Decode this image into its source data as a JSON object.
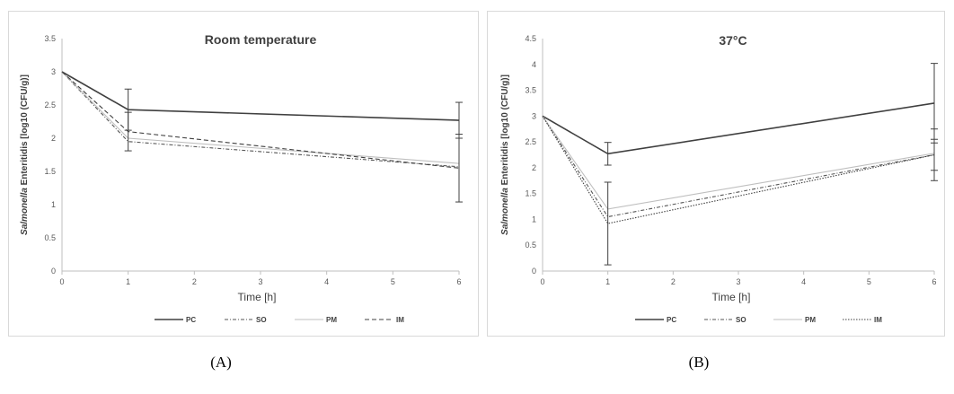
{
  "captions": [
    "(A)",
    "(B)"
  ],
  "chart_data": [
    {
      "type": "line",
      "title": "Room temperature",
      "xlabel": "Time [h]",
      "ylabel_italic": "Salmonella",
      "ylabel_rest": " Enteritidis  [log10 (CFU/g)]",
      "x": [
        0,
        1,
        6
      ],
      "xticks": [
        "0",
        "1",
        "2",
        "3",
        "4",
        "5",
        "6"
      ],
      "xlim": [
        0,
        6
      ],
      "ylim": [
        0,
        3.5
      ],
      "yticks": [
        "0",
        "0.5",
        "1",
        "1.5",
        "2",
        "2.5",
        "3",
        "3.5"
      ],
      "legend_position": "bottom",
      "series": [
        {
          "name": "PC",
          "values": [
            3.0,
            2.43,
            2.27
          ],
          "err": [
            0,
            0.31,
            0.27
          ],
          "dash": "",
          "color": "#404040",
          "width": 1.6
        },
        {
          "name": "SO",
          "values": [
            3.0,
            1.95,
            1.57
          ],
          "err": [
            0,
            0,
            0
          ],
          "dash": "4,2,1,2",
          "color": "#555555",
          "width": 1.1
        },
        {
          "name": "PM",
          "values": [
            3.0,
            2.0,
            1.62
          ],
          "err": [
            0,
            0,
            0
          ],
          "dash": "",
          "color": "#bfbfbf",
          "width": 1.1
        },
        {
          "name": "IM",
          "values": [
            3.0,
            2.1,
            1.55
          ],
          "err": [
            0,
            0.29,
            0.51
          ],
          "dash": "5,3",
          "color": "#404040",
          "width": 1.1
        }
      ]
    },
    {
      "type": "line",
      "title": "37°C",
      "xlabel": "Time [h]",
      "ylabel_italic": "Salmonella",
      "ylabel_rest": " Enteritidis  [log10 (CFU/g)]",
      "x": [
        0,
        1,
        6
      ],
      "xticks": [
        "0",
        "1",
        "2",
        "3",
        "4",
        "5",
        "6"
      ],
      "xlim": [
        0,
        6
      ],
      "ylim": [
        0,
        4.5
      ],
      "yticks": [
        "0",
        "0.5",
        "1",
        "1.5",
        "2",
        "2.5",
        "3",
        "3.5",
        "4",
        "4.5"
      ],
      "legend_position": "bottom",
      "series": [
        {
          "name": "PC",
          "values": [
            3.0,
            2.27,
            3.25
          ],
          "err": [
            0,
            0.22,
            0.77
          ],
          "dash": "",
          "color": "#404040",
          "width": 1.6
        },
        {
          "name": "SO",
          "values": [
            3.0,
            1.05,
            2.25
          ],
          "err": [
            0,
            0,
            0.3
          ],
          "dash": "4,2,1,2",
          "color": "#555555",
          "width": 1.1
        },
        {
          "name": "PM",
          "values": [
            3.0,
            1.2,
            2.28
          ],
          "err": [
            0,
            0,
            0
          ],
          "dash": "",
          "color": "#bfbfbf",
          "width": 1.1
        },
        {
          "name": "IM",
          "values": [
            3.0,
            0.92,
            2.25
          ],
          "err": [
            0,
            0.8,
            0.5
          ],
          "dash": "1.5,1.5",
          "color": "#404040",
          "width": 1.1
        }
      ]
    }
  ]
}
